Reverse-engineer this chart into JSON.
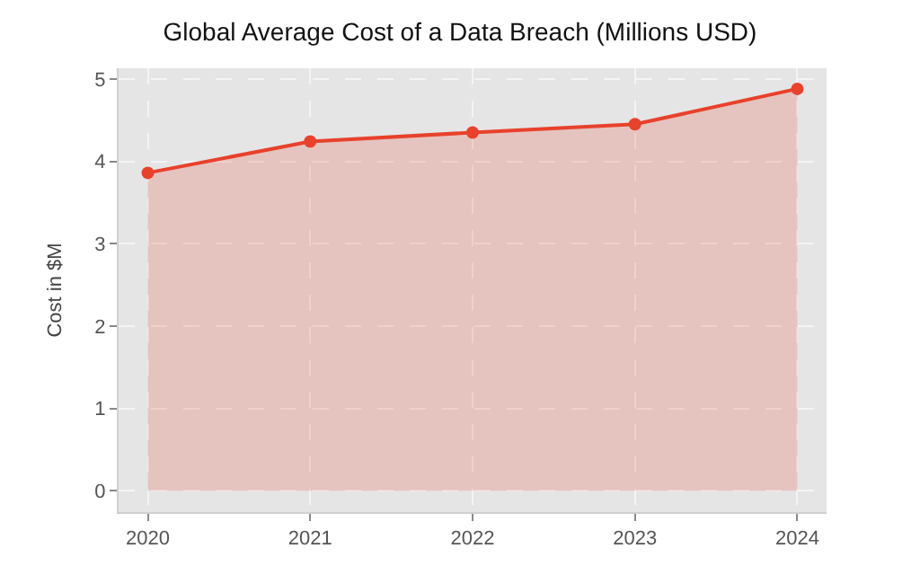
{
  "chart_data": {
    "type": "area",
    "title": "Global Average Cost of a Data Breach (Millions USD)",
    "ylabel": "Cost in $M",
    "x": [
      2020,
      2021,
      2022,
      2023,
      2024
    ],
    "series": [
      {
        "color": "#e8412c",
        "values": [
          3.86,
          4.24,
          4.35,
          4.45,
          4.88
        ]
      }
    ],
    "xlim": [
      2019.82,
      2024.18
    ],
    "xticks": [
      2020,
      2021,
      2022,
      2023,
      2024
    ],
    "ylim": [
      -0.26,
      5.13
    ],
    "yticks": [
      0,
      1,
      2,
      3,
      4,
      5
    ],
    "grid": true,
    "marker": "circle",
    "line_style": "solid"
  }
}
